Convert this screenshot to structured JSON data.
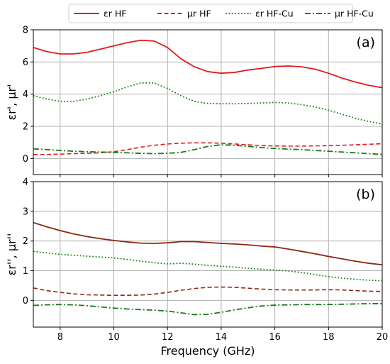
{
  "legend": {
    "placement": "top-center",
    "entries": [
      {
        "label": "εr HF",
        "color": "#e41a1c",
        "dash": "solid"
      },
      {
        "label": "μr HF",
        "color": "#e41a1c",
        "dash": "dashed"
      },
      {
        "label": "εr HF-Cu",
        "color": "#1a8a1a",
        "dash": "dotted"
      },
      {
        "label": "μr HF-Cu",
        "color": "#1a7a1a",
        "dash": "dashdot"
      }
    ]
  },
  "xaxis": {
    "label": "Frequency (GHz)",
    "range": [
      7,
      20
    ],
    "ticks": [
      8,
      10,
      12,
      14,
      16,
      18,
      20
    ]
  },
  "chart_data": [
    {
      "type": "line",
      "panel_label": "(a)",
      "ylabel": "εr', μr'",
      "xlim": [
        7,
        20
      ],
      "ylim": [
        -1,
        8
      ],
      "yticks": [
        0,
        2,
        4,
        6,
        8
      ],
      "grid": true,
      "x": [
        7,
        7.5,
        8,
        8.5,
        9,
        9.5,
        10,
        10.5,
        11,
        11.5,
        12,
        12.5,
        13,
        13.5,
        14,
        14.5,
        15,
        15.5,
        16,
        16.5,
        17,
        17.5,
        18,
        18.5,
        19,
        19.5,
        20
      ],
      "series": [
        {
          "name": "εr HF",
          "color": "#e41a1c",
          "dash": "solid",
          "width": 1.8,
          "values": [
            6.9,
            6.65,
            6.5,
            6.5,
            6.6,
            6.8,
            7.0,
            7.2,
            7.35,
            7.3,
            6.9,
            6.2,
            5.7,
            5.4,
            5.3,
            5.35,
            5.5,
            5.6,
            5.72,
            5.75,
            5.7,
            5.55,
            5.3,
            5.0,
            4.75,
            4.55,
            4.4
          ]
        },
        {
          "name": "μr HF",
          "color": "#e41a1c",
          "dash": "dashed",
          "width": 1.6,
          "values": [
            0.25,
            0.25,
            0.27,
            0.3,
            0.32,
            0.35,
            0.42,
            0.55,
            0.7,
            0.82,
            0.9,
            0.95,
            0.97,
            0.97,
            0.95,
            0.9,
            0.85,
            0.8,
            0.78,
            0.77,
            0.77,
            0.78,
            0.8,
            0.82,
            0.85,
            0.88,
            0.92
          ]
        },
        {
          "name": "εr HF-Cu",
          "color": "#1a8a1a",
          "dash": "dotted",
          "width": 1.8,
          "values": [
            3.9,
            3.7,
            3.55,
            3.55,
            3.7,
            3.9,
            4.15,
            4.45,
            4.7,
            4.7,
            4.35,
            3.9,
            3.55,
            3.42,
            3.4,
            3.4,
            3.42,
            3.45,
            3.48,
            3.45,
            3.35,
            3.2,
            3.0,
            2.75,
            2.5,
            2.3,
            2.15
          ]
        },
        {
          "name": "μr HF-Cu",
          "color": "#1a7a1a",
          "dash": "dashdot",
          "width": 1.8,
          "values": [
            0.6,
            0.55,
            0.5,
            0.45,
            0.42,
            0.4,
            0.38,
            0.35,
            0.32,
            0.3,
            0.32,
            0.38,
            0.55,
            0.75,
            0.85,
            0.82,
            0.75,
            0.68,
            0.62,
            0.58,
            0.55,
            0.5,
            0.45,
            0.4,
            0.35,
            0.3,
            0.25
          ]
        }
      ]
    },
    {
      "type": "line",
      "panel_label": "(b)",
      "ylabel": "εr'', μr''",
      "xlim": [
        7,
        20
      ],
      "ylim": [
        -0.9,
        4
      ],
      "yticks": [
        0,
        1,
        2,
        3,
        4
      ],
      "grid": true,
      "x": [
        7,
        7.5,
        8,
        8.5,
        9,
        9.5,
        10,
        10.5,
        11,
        11.5,
        12,
        12.5,
        13,
        13.5,
        14,
        14.5,
        15,
        15.5,
        16,
        16.5,
        17,
        17.5,
        18,
        18.5,
        19,
        19.5,
        20
      ],
      "series": [
        {
          "name": "εr HF",
          "color": "#8b2a10",
          "dash": "solid",
          "width": 1.8,
          "values": [
            2.62,
            2.48,
            2.35,
            2.24,
            2.15,
            2.08,
            2.02,
            1.97,
            1.93,
            1.92,
            1.94,
            1.98,
            1.98,
            1.95,
            1.92,
            1.9,
            1.87,
            1.83,
            1.8,
            1.73,
            1.65,
            1.57,
            1.48,
            1.4,
            1.32,
            1.25,
            1.2
          ]
        },
        {
          "name": "μr HF",
          "color": "#8b2a10",
          "dash": "dashed",
          "width": 1.6,
          "values": [
            0.42,
            0.33,
            0.27,
            0.22,
            0.19,
            0.18,
            0.17,
            0.17,
            0.18,
            0.21,
            0.27,
            0.34,
            0.4,
            0.44,
            0.45,
            0.44,
            0.41,
            0.38,
            0.36,
            0.35,
            0.35,
            0.35,
            0.36,
            0.35,
            0.33,
            0.31,
            0.3
          ]
        },
        {
          "name": "εr HF-Cu",
          "color": "#1a8a1a",
          "dash": "dotted",
          "width": 1.8,
          "values": [
            1.65,
            1.6,
            1.55,
            1.52,
            1.49,
            1.46,
            1.43,
            1.38,
            1.32,
            1.27,
            1.23,
            1.25,
            1.22,
            1.18,
            1.15,
            1.12,
            1.08,
            1.05,
            1.02,
            0.99,
            0.94,
            0.87,
            0.8,
            0.75,
            0.71,
            0.68,
            0.66
          ]
        },
        {
          "name": "μr HF-Cu",
          "color": "#1a7a1a",
          "dash": "dashdot",
          "width": 1.8,
          "values": [
            -0.17,
            -0.15,
            -0.14,
            -0.15,
            -0.18,
            -0.22,
            -0.26,
            -0.29,
            -0.31,
            -0.33,
            -0.36,
            -0.42,
            -0.48,
            -0.47,
            -0.4,
            -0.32,
            -0.25,
            -0.19,
            -0.16,
            -0.15,
            -0.14,
            -0.14,
            -0.14,
            -0.13,
            -0.12,
            -0.11,
            -0.11
          ]
        }
      ]
    }
  ]
}
